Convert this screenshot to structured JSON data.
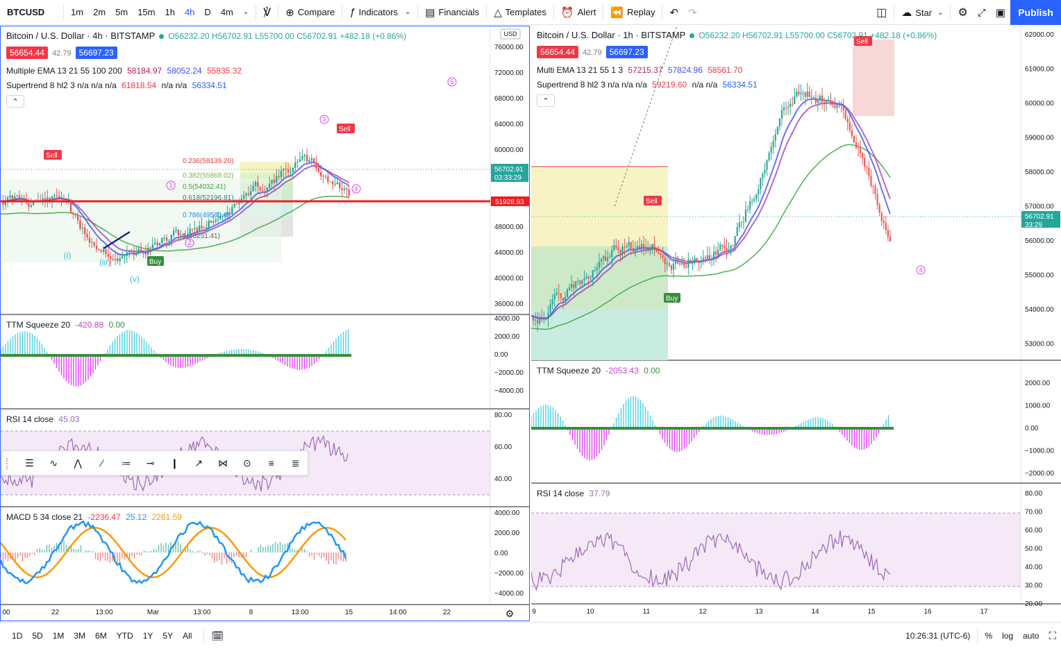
{
  "topbar": {
    "symbol": "BTCUSD",
    "intervals": [
      "1m",
      "2m",
      "5m",
      "15m",
      "1h",
      "4h",
      "D",
      "4m"
    ],
    "active_interval": "4h",
    "compare": "Compare",
    "indicators": "Indicators",
    "financials": "Financials",
    "templates": "Templates",
    "alert": "Alert",
    "replay": "Replay",
    "star": "Star",
    "publish": "Publish"
  },
  "left_chart": {
    "title": "Bitcoin / U.S. Dollar · 4h · BITSTAMP",
    "ohlc": "O56232.20 H56702.91 L55700.00 C56702.91 +482.18 (+0.86%)",
    "bid": "56654.44",
    "spread": "42.79",
    "ask": "56697.23",
    "ema_legend": "Multiple EMA 13 21 55 100 200",
    "ema_values": [
      "58184.97",
      "58052.24",
      "55835.32"
    ],
    "supertrend_legend": "Supertrend 8 hl2 3  n/a n/a n/a",
    "supertrend_red": "61818.54",
    "supertrend_na": "n/a n/a",
    "supertrend_blue": "56334.51",
    "currency": "USD",
    "price_axis": [
      "76000.00",
      "72000.00",
      "68000.00",
      "64000.00",
      "60000.00",
      "56000.00",
      "52000.00",
      "48000.00",
      "44000.00",
      "40000.00",
      "36000.00"
    ],
    "last_price": "56702.91",
    "countdown": "03:33:29",
    "hline_price": "51928.93",
    "fib_levels": [
      "0.236(58139.20)",
      "0.382(55868.02)",
      "0.5(54032.41)",
      "0.618(52196.81)",
      "0.786(49583.6)",
      "1(46251.41)"
    ],
    "ttm_legend": "TTM Squeeze 20",
    "ttm_values": [
      "-420.88",
      "0.00"
    ],
    "ttm_axis": [
      "4000.00",
      "2000.00",
      "0.00",
      "−2000.00",
      "−4000.00"
    ],
    "rsi_legend": "RSI 14 close",
    "rsi_value": "45.03",
    "rsi_axis": [
      "80.00",
      "60.00",
      "40.00"
    ],
    "macd_legend": "MACD 5 34 close 21",
    "macd_values": [
      "-2236.47",
      "25.12",
      "2261.59"
    ],
    "macd_axis": [
      "4000.00",
      "2000.00",
      "0.00",
      "−2000.00",
      "−4000.00"
    ],
    "time_axis": [
      "00",
      "22",
      "13:00",
      "Mar",
      "13:00",
      "8",
      "13:00",
      "15",
      "14:00",
      "22"
    ]
  },
  "right_chart": {
    "title": "Bitcoin / U.S. Dollar · 1h · BITSTAMP",
    "ohlc": "O56232.20 H56702.91 L55700.00 C56702.91 +482.18 (+0.86%)",
    "bid": "56654.44",
    "spread": "42.79",
    "ask": "56697.23",
    "ema_legend": "Multi EMA 13 21 55 1 3",
    "ema_values": [
      "57215.37",
      "57824.96",
      "58561.70"
    ],
    "supertrend_legend": "Supertrend 8 hl2 3  n/a n/a n/a",
    "supertrend_red": "59219.60",
    "supertrend_na": "n/a n/a",
    "supertrend_blue": "56334.51",
    "price_axis": [
      "62000.00",
      "61000.00",
      "60000.00",
      "59000.00",
      "58000.00",
      "57000.00",
      "56000.00",
      "55000.00",
      "54000.00",
      "53000.00"
    ],
    "last_price": "56702.91",
    "countdown": "33:29",
    "ttm_legend": "TTM Squeeze 20",
    "ttm_values": [
      "-2053.43",
      "0.00"
    ],
    "ttm_axis": [
      "2000.00",
      "1000.00",
      "0.00",
      "−1000.00",
      "−2000.00"
    ],
    "rsi_legend": "RSI 14 close",
    "rsi_value": "37.79",
    "rsi_axis": [
      "80.00",
      "70.00",
      "60.00",
      "50.00",
      "40.00",
      "30.00",
      "20.00"
    ],
    "time_axis": [
      "9",
      "10",
      "11",
      "12",
      "13",
      "14",
      "15",
      "16",
      "17"
    ]
  },
  "bottombar": {
    "ranges": [
      "1D",
      "5D",
      "1M",
      "3M",
      "6M",
      "YTD",
      "1Y",
      "5Y",
      "All"
    ],
    "clock": "10:26:31 (UTC-6)",
    "percent": "%",
    "log": "log",
    "auto": "auto"
  },
  "colors": {
    "accent": "#2962ff",
    "up": "#26a69a",
    "down": "#ef5350",
    "ema_magenta": "#c2185b",
    "ema_purple": "#9c27b0",
    "ema_blue": "#3f51f5",
    "supertrend_red": "#f23645",
    "supertrend_green": "#4caf50",
    "rsi_purple": "#9c6ab8"
  }
}
